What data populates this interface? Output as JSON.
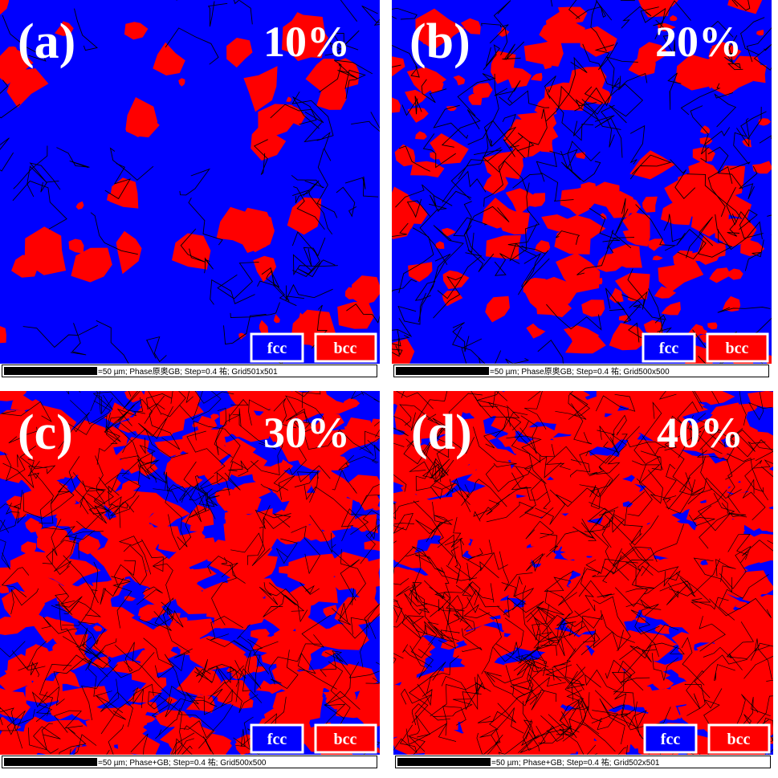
{
  "panels": [
    {
      "label": "(a)",
      "percent": "10%",
      "legend": [
        "fcc",
        "bcc"
      ],
      "scale_text": "=50 µm; Phase原奥GB; Step=0.4 祐; Grid501x501"
    },
    {
      "label": "(b)",
      "percent": "20%",
      "legend": [
        "fcc",
        "bcc"
      ],
      "scale_text": "=50 µm; Phase原奥GB; Step=0.4 祐; Grid500x500"
    },
    {
      "label": "(c)",
      "percent": "30%",
      "legend": [
        "fcc",
        "bcc"
      ],
      "scale_text": "=50 µm; Phase+GB; Step=0.4 祐; Grid500x500"
    },
    {
      "label": "(d)",
      "percent": "40%",
      "legend": [
        "fcc",
        "bcc"
      ],
      "scale_text": "=50 µm; Phase+GB; Step=0.4 祐; Grid502x501"
    }
  ]
}
